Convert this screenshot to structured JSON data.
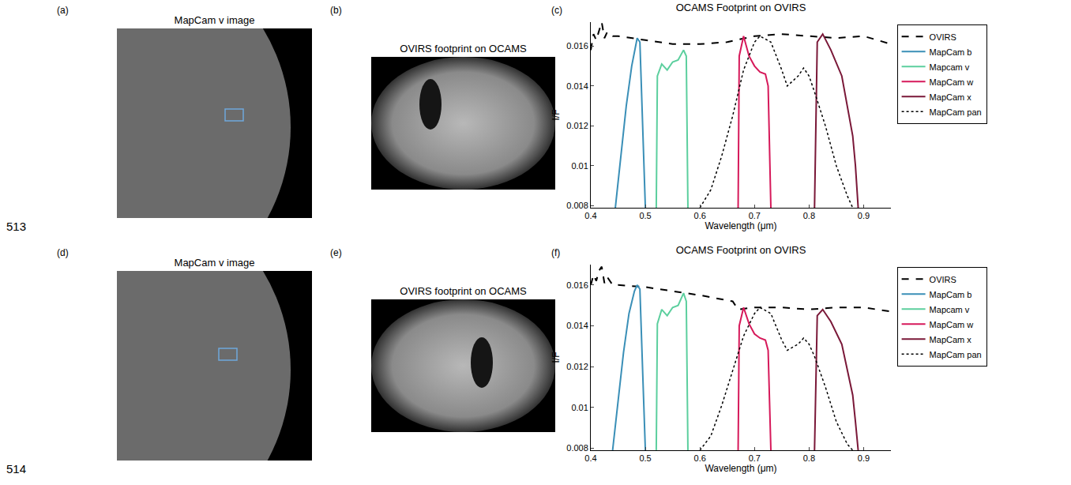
{
  "line_numbers": [
    "513",
    "514"
  ],
  "image_panels": [
    {
      "panel_label": "(a)",
      "title": "MapCam v image",
      "kind": "asteroid"
    },
    {
      "panel_label": "(b)",
      "title": "OVIRS footprint on OCAMS",
      "kind": "footprint"
    },
    {
      "panel_label": "(d)",
      "title": "MapCam v image",
      "kind": "asteroid"
    },
    {
      "panel_label": "(e)",
      "title": "OVIRS footprint on OCAMS",
      "kind": "footprint"
    }
  ],
  "chart_data": [
    {
      "panel_label": "(c)",
      "type": "line",
      "title": "OCAMS Footprint on OVIRS",
      "x_label": "Wavelength (μm)",
      "y_label": "I/F",
      "xlim": [
        0.4,
        0.95
      ],
      "xticks": [
        0.4,
        0.5,
        0.6,
        0.7,
        0.8,
        0.9
      ],
      "ylim": [
        0.0079,
        0.0172
      ],
      "yticks": [
        0.008,
        0.01,
        0.012,
        0.014,
        0.016
      ],
      "grid": false,
      "legend": "right",
      "series": [
        {
          "name": "OVIRS",
          "color": "#000000",
          "line_style": "dashed",
          "x": [
            0.4,
            0.405,
            0.41,
            0.415,
            0.42,
            0.425,
            0.43,
            0.44,
            0.45,
            0.5,
            0.55,
            0.6,
            0.65,
            0.7,
            0.75,
            0.8,
            0.85,
            0.9,
            0.95
          ],
          "values": [
            0.0158,
            0.0166,
            0.0163,
            0.0168,
            0.0172,
            0.0164,
            0.0167,
            0.0165,
            0.0165,
            0.0163,
            0.0161,
            0.0161,
            0.0162,
            0.0165,
            0.0166,
            0.0165,
            0.0164,
            0.0165,
            0.0161
          ]
        },
        {
          "name": "MapCam b",
          "color": "#3a8fb7",
          "line_style": "solid",
          "x": [
            0.445,
            0.455,
            0.465,
            0.475,
            0.485,
            0.49,
            0.495,
            0.5
          ],
          "values": [
            0.0079,
            0.0105,
            0.013,
            0.015,
            0.0164,
            0.0162,
            0.012,
            0.0079
          ]
        },
        {
          "name": "Mapcam v",
          "color": "#5ccf9e",
          "line_style": "solid",
          "x": [
            0.52,
            0.522,
            0.53,
            0.54,
            0.55,
            0.56,
            0.57,
            0.575,
            0.578
          ],
          "values": [
            0.0079,
            0.0145,
            0.0151,
            0.0148,
            0.0152,
            0.0153,
            0.0158,
            0.0155,
            0.0079
          ]
        },
        {
          "name": "MapCam w",
          "color": "#d6195a",
          "line_style": "solid",
          "x": [
            0.67,
            0.672,
            0.68,
            0.69,
            0.7,
            0.71,
            0.72,
            0.725,
            0.73
          ],
          "values": [
            0.0079,
            0.0155,
            0.0165,
            0.0155,
            0.015,
            0.0147,
            0.0146,
            0.014,
            0.0079
          ]
        },
        {
          "name": "MapCam x",
          "color": "#7a1838",
          "line_style": "solid",
          "x": [
            0.81,
            0.815,
            0.825,
            0.84,
            0.86,
            0.87,
            0.88,
            0.885,
            0.89
          ],
          "values": [
            0.0079,
            0.0162,
            0.0166,
            0.0158,
            0.0145,
            0.013,
            0.0115,
            0.01,
            0.0079
          ]
        },
        {
          "name": "MapCam pan",
          "color": "#000000",
          "line_style": "dotted",
          "x": [
            0.6,
            0.62,
            0.64,
            0.66,
            0.68,
            0.7,
            0.71,
            0.73,
            0.75,
            0.76,
            0.78,
            0.79,
            0.8,
            0.81,
            0.83,
            0.85,
            0.87,
            0.88
          ],
          "values": [
            0.0079,
            0.0088,
            0.0105,
            0.0125,
            0.0148,
            0.0162,
            0.0165,
            0.0162,
            0.0148,
            0.014,
            0.0145,
            0.0149,
            0.0145,
            0.0137,
            0.012,
            0.01,
            0.0085,
            0.0079
          ]
        }
      ]
    },
    {
      "panel_label": "(f)",
      "type": "line",
      "title": "OCAMS Footprint on OVIRS",
      "x_label": "Wavelength (μm)",
      "y_label": "I/F",
      "xlim": [
        0.4,
        0.95
      ],
      "xticks": [
        0.4,
        0.5,
        0.6,
        0.7,
        0.8,
        0.9
      ],
      "ylim": [
        0.0079,
        0.017
      ],
      "yticks": [
        0.008,
        0.01,
        0.012,
        0.014,
        0.016
      ],
      "grid": false,
      "legend": "right",
      "series": [
        {
          "name": "OVIRS",
          "color": "#000000",
          "line_style": "dashed",
          "x": [
            0.4,
            0.405,
            0.41,
            0.415,
            0.42,
            0.425,
            0.43,
            0.44,
            0.45,
            0.5,
            0.55,
            0.6,
            0.66,
            0.67,
            0.7,
            0.75,
            0.8,
            0.85,
            0.9,
            0.95
          ],
          "values": [
            0.016,
            0.0165,
            0.0162,
            0.0167,
            0.0169,
            0.0161,
            0.0164,
            0.016,
            0.016,
            0.0159,
            0.0157,
            0.0155,
            0.0152,
            0.0148,
            0.0149,
            0.0149,
            0.0148,
            0.0149,
            0.0149,
            0.0147
          ]
        },
        {
          "name": "MapCam b",
          "color": "#3a8fb7",
          "line_style": "solid",
          "x": [
            0.44,
            0.45,
            0.46,
            0.47,
            0.48,
            0.485,
            0.49,
            0.495,
            0.5
          ],
          "values": [
            0.0079,
            0.0102,
            0.0127,
            0.0146,
            0.0157,
            0.016,
            0.0158,
            0.0118,
            0.0079
          ]
        },
        {
          "name": "Mapcam v",
          "color": "#5ccf9e",
          "line_style": "solid",
          "x": [
            0.52,
            0.522,
            0.53,
            0.54,
            0.55,
            0.56,
            0.57,
            0.575,
            0.578
          ],
          "values": [
            0.0079,
            0.0141,
            0.0148,
            0.0145,
            0.0149,
            0.015,
            0.0156,
            0.0152,
            0.0079
          ]
        },
        {
          "name": "MapCam w",
          "color": "#d6195a",
          "line_style": "solid",
          "x": [
            0.67,
            0.672,
            0.68,
            0.69,
            0.7,
            0.71,
            0.72,
            0.725,
            0.73
          ],
          "values": [
            0.0079,
            0.014,
            0.0149,
            0.0141,
            0.0136,
            0.0134,
            0.0133,
            0.0128,
            0.0079
          ]
        },
        {
          "name": "MapCam x",
          "color": "#7a1838",
          "line_style": "solid",
          "x": [
            0.81,
            0.815,
            0.825,
            0.84,
            0.86,
            0.87,
            0.88,
            0.885,
            0.89
          ],
          "values": [
            0.0079,
            0.0145,
            0.0148,
            0.0142,
            0.0131,
            0.0119,
            0.0106,
            0.0093,
            0.0079
          ]
        },
        {
          "name": "MapCam pan",
          "color": "#000000",
          "line_style": "dotted",
          "x": [
            0.6,
            0.62,
            0.64,
            0.66,
            0.68,
            0.7,
            0.71,
            0.73,
            0.75,
            0.76,
            0.78,
            0.79,
            0.8,
            0.81,
            0.83,
            0.85,
            0.87,
            0.88
          ],
          "values": [
            0.0079,
            0.0086,
            0.0101,
            0.0118,
            0.0135,
            0.0146,
            0.0149,
            0.0146,
            0.0133,
            0.0128,
            0.0131,
            0.0134,
            0.0131,
            0.0125,
            0.011,
            0.0093,
            0.0082,
            0.0079
          ]
        }
      ]
    }
  ]
}
